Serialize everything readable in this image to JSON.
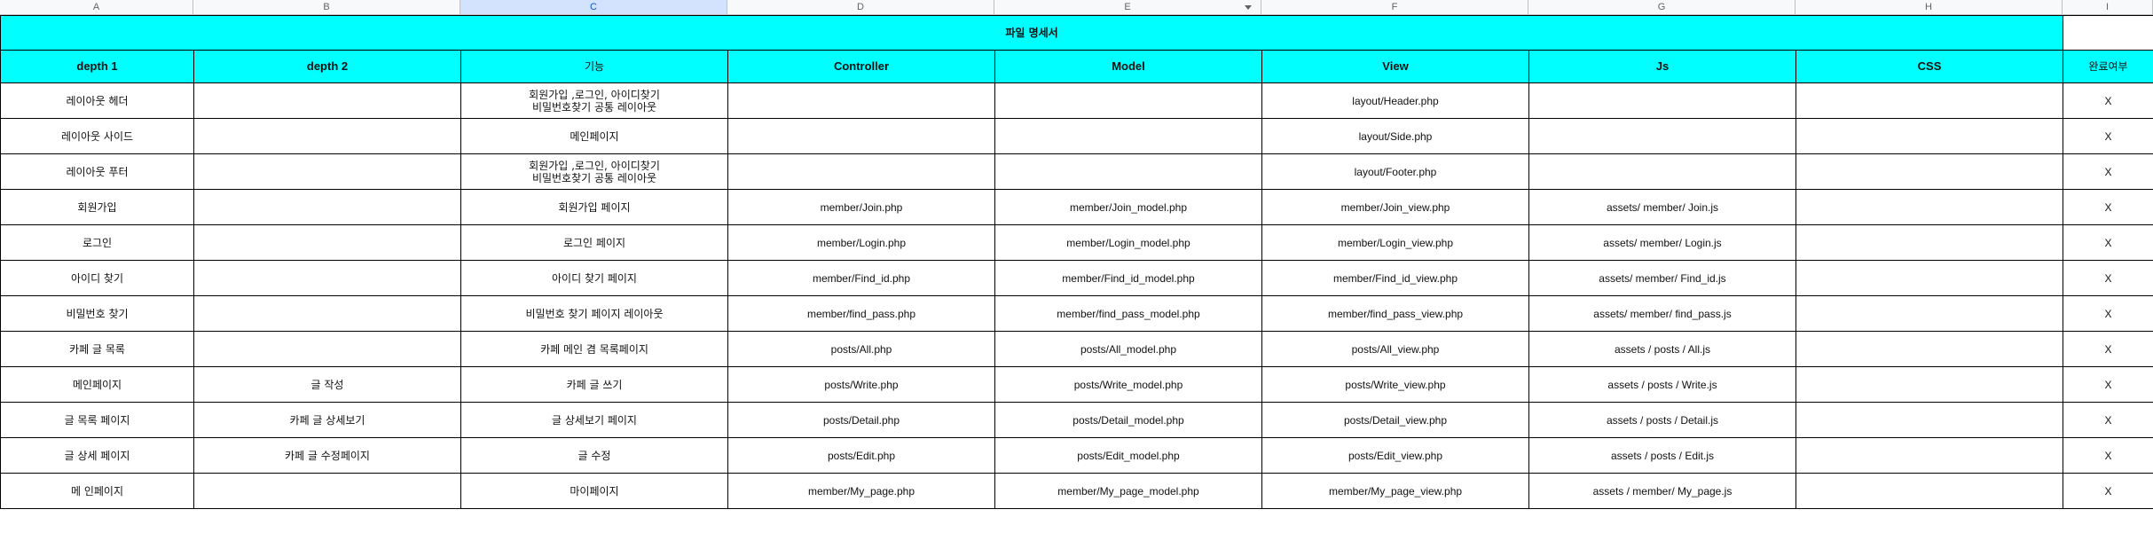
{
  "columns": [
    "A",
    "B",
    "C",
    "D",
    "E",
    "F",
    "G",
    "H",
    "I"
  ],
  "selected_column": "C",
  "title": "파일 명세서",
  "headers": [
    "depth 1",
    "depth 2",
    "기능",
    "Controller",
    "Model",
    "View",
    "Js",
    "CSS",
    "완료여부"
  ],
  "rows": [
    {
      "d1": "레이아웃 헤더",
      "d2": "",
      "func": "회원가입 ,로그인, 아이디찾기\n비밀번호찾기 공통 레이아웃",
      "ctrl": "",
      "model": "",
      "view": "layout/Header.php",
      "js": "",
      "css": "",
      "done": "X"
    },
    {
      "d1": "레이아웃 사이드",
      "d2": "",
      "func": "메인페이지",
      "ctrl": "",
      "model": "",
      "view": "layout/Side.php",
      "js": "",
      "css": "",
      "done": "X"
    },
    {
      "d1": "레이아웃 푸터",
      "d2": "",
      "func": "회원가입 ,로그인, 아이디찾기\n비밀번호찾기 공통 레이아웃",
      "ctrl": "",
      "model": "",
      "view": "layout/Footer.php",
      "js": "",
      "css": "",
      "done": "X"
    },
    {
      "d1": "회원가입",
      "d2": "",
      "func": "회원가입 페이지",
      "ctrl": "member/Join.php",
      "model": "member/Join_model.php",
      "view": "member/Join_view.php",
      "js": "assets/ member/ Join.js",
      "css": "",
      "done": "X"
    },
    {
      "d1": "로그인",
      "d2": "",
      "func": "로그인 페이지",
      "ctrl": "member/Login.php",
      "model": "member/Login_model.php",
      "view": "member/Login_view.php",
      "js": "assets/ member/ Login.js",
      "css": "",
      "done": "X"
    },
    {
      "d1": "아이디 찾기",
      "d2": "",
      "func": "아이디 찾기 페이지",
      "ctrl": "member/Find_id.php",
      "model": "member/Find_id_model.php",
      "view": "member/Find_id_view.php",
      "js": "assets/ member/ Find_id.js",
      "css": "",
      "done": "X"
    },
    {
      "d1": "비밀번호 찾기",
      "d2": "",
      "func": "비밀번호 찾기 페이지 레이아웃",
      "ctrl": "member/find_pass.php",
      "model": "member/find_pass_model.php",
      "view": "member/find_pass_view.php",
      "js": "assets/ member/ find_pass.js",
      "css": "",
      "done": "X"
    },
    {
      "d1": "카페 글 목록",
      "d2": "",
      "func": "카페 메인 겸 목록페이지",
      "ctrl": "posts/All.php",
      "model": "posts/All_model.php",
      "view": "posts/All_view.php",
      "js": "assets / posts / All.js",
      "css": "",
      "done": "X"
    },
    {
      "d1": "메인페이지",
      "d2": "글 작성",
      "func": "카페 글 쓰기",
      "ctrl": "posts/Write.php",
      "model": "posts/Write_model.php",
      "view": "posts/Write_view.php",
      "js": "assets / posts / Write.js",
      "css": "",
      "done": "X"
    },
    {
      "d1": "글 목록 페이지",
      "d2": "카페 글 상세보기",
      "func": "글 상세보기 페이지",
      "ctrl": "posts/Detail.php",
      "model": "posts/Detail_model.php",
      "view": "posts/Detail_view.php",
      "js": "assets / posts / Detail.js",
      "css": "",
      "done": "X"
    },
    {
      "d1": "글 상세 페이지",
      "d2": "카페 글 수정페이지",
      "func": "글 수정",
      "ctrl": "posts/Edit.php",
      "model": "posts/Edit_model.php",
      "view": "posts/Edit_view.php",
      "js": "assets / posts / Edit.js",
      "css": "",
      "done": "X"
    },
    {
      "d1": "메 인페이지",
      "d2": "",
      "func": "마이페이지",
      "ctrl": "member/My_page.php",
      "model": "member/My_page_model.php",
      "view": "member/My_page_view.php",
      "js": "assets / member/ My_page.js",
      "css": "",
      "done": "X"
    }
  ]
}
